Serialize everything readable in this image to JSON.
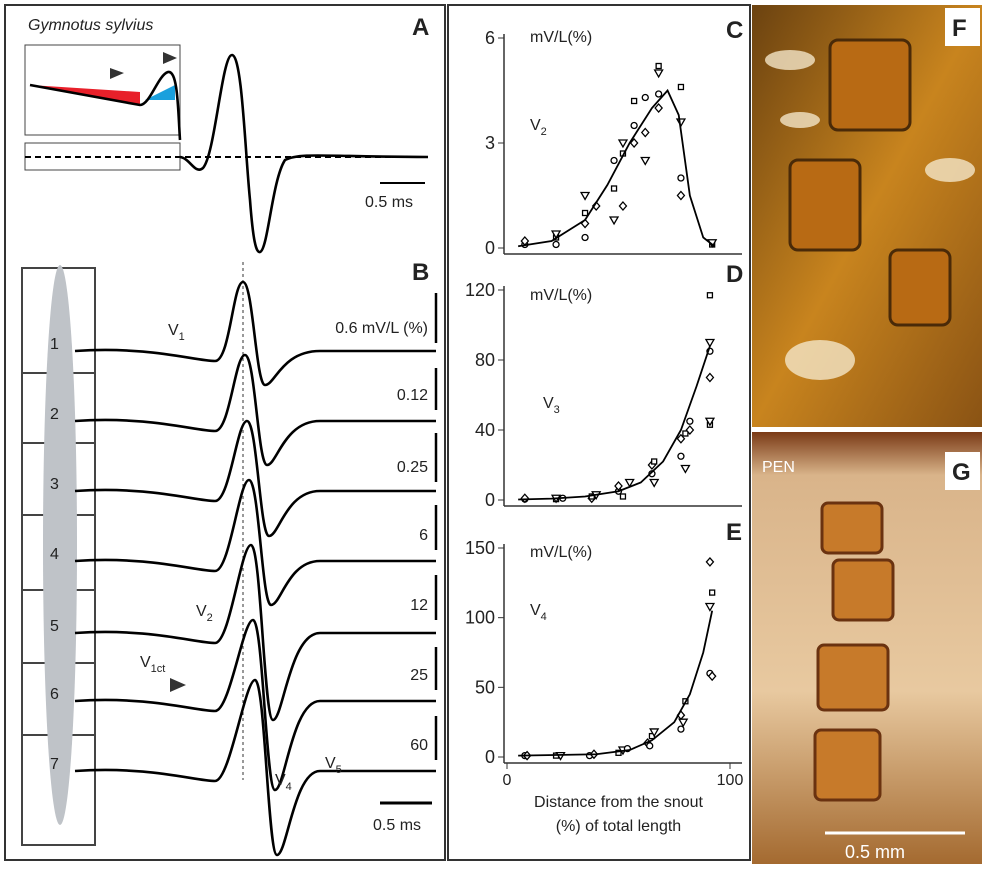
{
  "panel_a": {
    "title": "Gymnotus sylvius",
    "letter": "A",
    "scale": "0.5 ms"
  },
  "panel_b": {
    "letter": "B",
    "segments": [
      "1",
      "2",
      "3",
      "4",
      "5",
      "6",
      "7"
    ],
    "scales": [
      "0.6 mV/L (%)",
      "0.12",
      "0.25",
      "6",
      "12",
      "25",
      "60"
    ],
    "waves": [
      {
        "main": "V",
        "sub": "1"
      },
      {
        "main": "V",
        "sub": "2"
      },
      {
        "main": "V",
        "sub": "1ct"
      },
      {
        "main": "V",
        "sub": "4"
      },
      {
        "main": "V",
        "sub": "5"
      }
    ],
    "time_scale": "0.5 ms"
  },
  "chart_data": [
    {
      "type": "scatter",
      "letter": "C",
      "y_label": "mV/L(%)",
      "annotation": {
        "main": "V",
        "sub": "2"
      },
      "xlim": [
        0,
        100
      ],
      "ylim": [
        0,
        6
      ],
      "yticks": [
        0,
        3,
        6
      ],
      "series": [
        {
          "color": "#000000",
          "style": "markers",
          "x": [
            8,
            8,
            22,
            22,
            22,
            35,
            35,
            35,
            35,
            40,
            48,
            48,
            48,
            52,
            52,
            52,
            57,
            57,
            57,
            62,
            62,
            62,
            68,
            68,
            68,
            68,
            78,
            78,
            78,
            78,
            92,
            92
          ],
          "values": [
            0.1,
            0.2,
            0.3,
            0.4,
            0.1,
            0.7,
            1.0,
            1.5,
            0.3,
            1.2,
            1.7,
            0.8,
            2.5,
            1.2,
            2.7,
            3.0,
            3.5,
            3.0,
            4.2,
            2.5,
            4.3,
            3.3,
            5.2,
            5.0,
            4.4,
            4.0,
            4.6,
            3.6,
            2.0,
            1.5,
            0.1,
            0.15
          ]
        },
        {
          "color": "#000000",
          "style": "line",
          "x": [
            5,
            20,
            35,
            45,
            55,
            65,
            72,
            77,
            82,
            88,
            93
          ],
          "values": [
            0.05,
            0.2,
            0.8,
            1.8,
            3.0,
            4.0,
            4.5,
            3.8,
            1.5,
            0.3,
            0.05
          ]
        }
      ]
    },
    {
      "type": "scatter",
      "letter": "D",
      "y_label": "mV/L(%)",
      "annotation": {
        "main": "V",
        "sub": "3"
      },
      "xlim": [
        0,
        100
      ],
      "ylim": [
        0,
        120
      ],
      "yticks": [
        0,
        40,
        80,
        120
      ],
      "series": [
        {
          "color": "#000000",
          "style": "markers",
          "x": [
            8,
            8,
            22,
            22,
            25,
            38,
            38,
            40,
            50,
            50,
            52,
            55,
            65,
            65,
            66,
            66,
            78,
            78,
            80,
            80,
            82,
            82,
            91,
            91,
            91,
            91,
            91,
            91
          ],
          "values": [
            0.5,
            1,
            0.5,
            1,
            1,
            1,
            2,
            3,
            5,
            8,
            2,
            10,
            15,
            20,
            22,
            10,
            25,
            35,
            38,
            18,
            45,
            40,
            117,
            90,
            85,
            70,
            43,
            45
          ]
        },
        {
          "color": "#000000",
          "style": "line",
          "x": [
            5,
            20,
            35,
            50,
            60,
            70,
            78,
            85,
            91
          ],
          "values": [
            0.3,
            0.8,
            2,
            5,
            10,
            22,
            40,
            65,
            88
          ]
        }
      ]
    },
    {
      "type": "scatter",
      "letter": "E",
      "y_label": "mV/L(%)",
      "annotation": {
        "main": "V",
        "sub": "4"
      },
      "xlim": [
        0,
        100
      ],
      "ylim": [
        0,
        150
      ],
      "yticks": [
        0,
        50,
        100,
        150
      ],
      "xticks": [
        0,
        100
      ],
      "x_label": [
        "Distance from the snout",
        "(%) of total length"
      ],
      "series": [
        {
          "color": "#000000",
          "style": "markers",
          "x": [
            8,
            9,
            22,
            24,
            37,
            39,
            50,
            52,
            54,
            63,
            65,
            66,
            64,
            78,
            80,
            79,
            78,
            91,
            92,
            91,
            91,
            92
          ],
          "values": [
            1,
            1,
            1,
            1,
            1,
            2,
            3,
            5,
            6,
            10,
            15,
            18,
            8,
            30,
            40,
            25,
            20,
            140,
            118,
            108,
            60,
            58
          ]
        },
        {
          "color": "#000000",
          "style": "line",
          "x": [
            5,
            25,
            40,
            55,
            65,
            75,
            82,
            88,
            92
          ],
          "values": [
            1,
            1.5,
            2,
            5,
            12,
            25,
            45,
            75,
            105
          ]
        }
      ]
    }
  ],
  "micrographs": {
    "f": {
      "letter": "F"
    },
    "g": {
      "letter": "G",
      "label": "PEN",
      "scale": "0.5 mm"
    }
  }
}
